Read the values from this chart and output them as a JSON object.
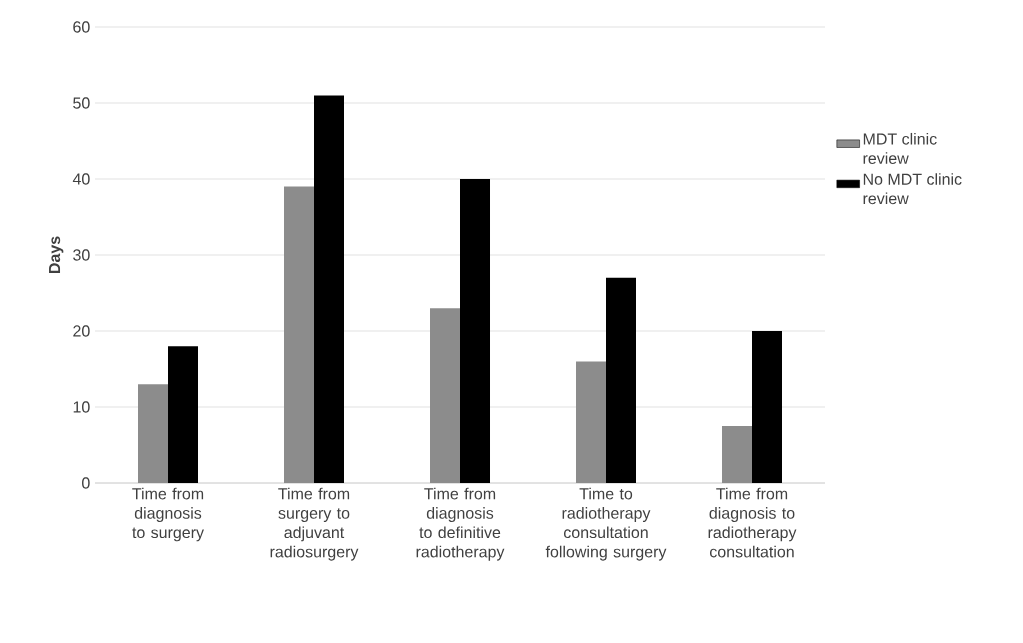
{
  "chart_data": {
    "type": "bar",
    "ylabel": "Days",
    "categories": [
      "Time from diagnosis to surgery",
      "Time from surgery to adjuvant radiosurgery",
      "Time from diagnosis to definitive radiotherapy",
      "Time to radiotherapy consultation following surgery",
      "Time from diagnosis to radiotherapy consultation"
    ],
    "series": [
      {
        "name": "MDT clinic review",
        "color": "#8c8c8c",
        "values": [
          13,
          39,
          23,
          16,
          7.5
        ]
      },
      {
        "name": "No MDT clinic review",
        "color": "#000000",
        "values": [
          18,
          51,
          40,
          27,
          20
        ]
      }
    ],
    "ylim": [
      0,
      60
    ],
    "yticks": [
      0,
      10,
      20,
      30,
      40,
      50,
      60
    ],
    "grid": "y",
    "legend": "right"
  }
}
